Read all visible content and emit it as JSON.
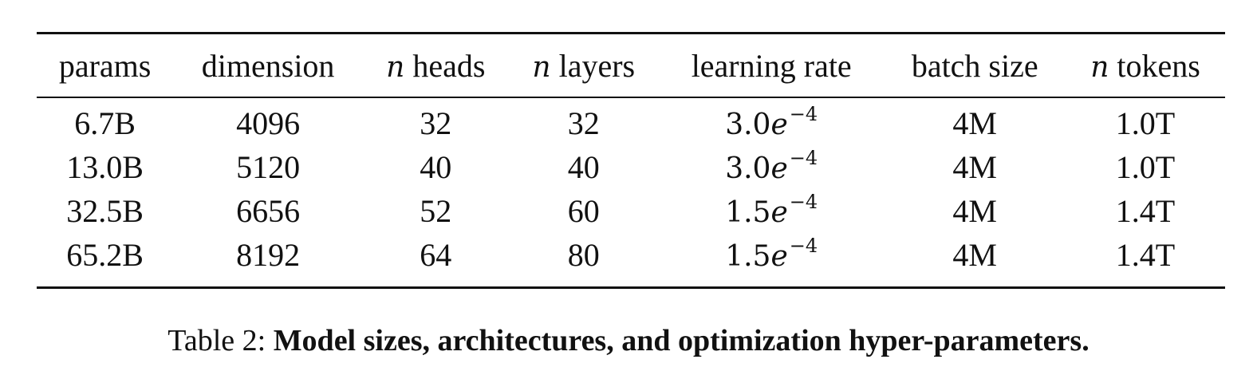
{
  "table": {
    "headers": [
      {
        "math": "",
        "text": "params"
      },
      {
        "math": "",
        "text": "dimension"
      },
      {
        "math": "n",
        "text": "heads"
      },
      {
        "math": "n",
        "text": "layers"
      },
      {
        "math": "",
        "text": "learning rate"
      },
      {
        "math": "",
        "text": "batch size"
      },
      {
        "math": "n",
        "text": "tokens"
      }
    ],
    "rows": [
      {
        "params": "6.7B",
        "dimension": "4096",
        "heads": "32",
        "layers": "32",
        "lr_base": "3.0",
        "lr_e": "e",
        "lr_exp": "−4",
        "batch": "4M",
        "tokens": "1.0T"
      },
      {
        "params": "13.0B",
        "dimension": "5120",
        "heads": "40",
        "layers": "40",
        "lr_base": "3.0",
        "lr_e": "e",
        "lr_exp": "−4",
        "batch": "4M",
        "tokens": "1.0T"
      },
      {
        "params": "32.5B",
        "dimension": "6656",
        "heads": "52",
        "layers": "60",
        "lr_base": "1.5",
        "lr_e": "e",
        "lr_exp": "−4",
        "batch": "4M",
        "tokens": "1.4T"
      },
      {
        "params": "65.2B",
        "dimension": "8192",
        "heads": "64",
        "layers": "80",
        "lr_base": "1.5",
        "lr_e": "e",
        "lr_exp": "−4",
        "batch": "4M",
        "tokens": "1.4T"
      }
    ]
  },
  "caption": {
    "label": "Table 2:",
    "text": "Model sizes, architectures, and optimization hyper-parameters."
  }
}
